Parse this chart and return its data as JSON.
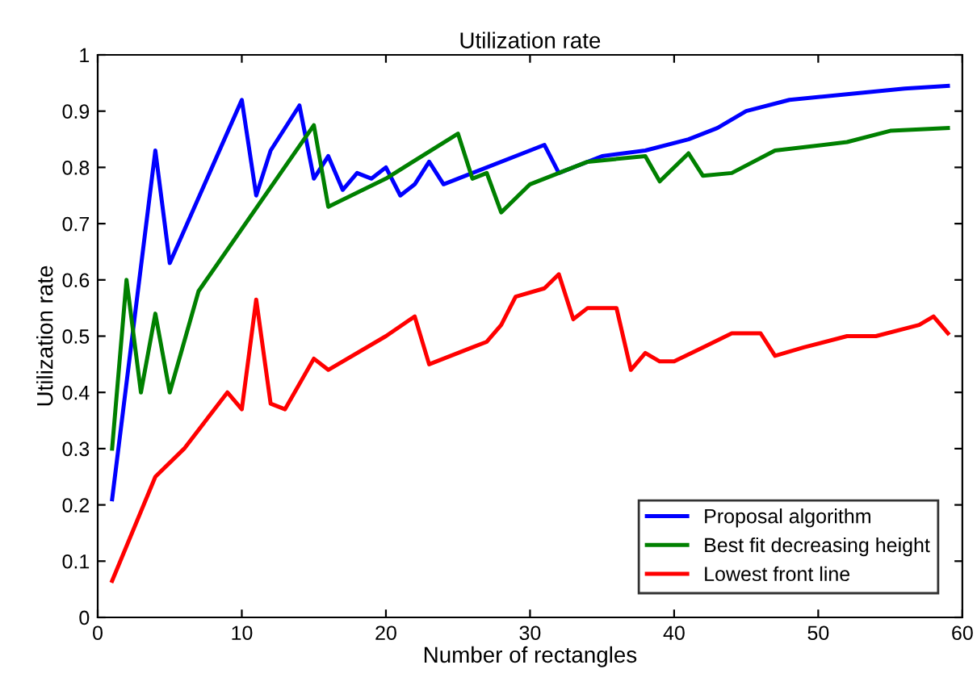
{
  "chart_data": {
    "type": "line",
    "title": "Utilization rate",
    "xlabel": "Number of rectangles",
    "ylabel": "Utilization rate",
    "xlim": [
      0,
      60
    ],
    "ylim": [
      0,
      1
    ],
    "xticks": [
      0,
      10,
      20,
      30,
      40,
      50,
      60
    ],
    "yticks": [
      0,
      0.1,
      0.2,
      0.3,
      0.4,
      0.5,
      0.6,
      0.7,
      0.8,
      0.9,
      1
    ],
    "grid": false,
    "legend": "bottom right",
    "marker": "none",
    "line_style": "solid",
    "series": [
      {
        "name": "Proposal algorithm",
        "color": "#0000ff",
        "x": [
          1,
          2.5,
          4,
          5,
          10,
          11,
          12,
          14,
          15,
          16,
          17,
          18,
          19,
          20,
          21,
          22,
          23,
          24,
          25,
          31,
          32,
          35,
          38,
          41,
          43,
          45,
          48,
          52,
          56,
          59
        ],
        "values": [
          0.21,
          0.52,
          0.83,
          0.63,
          0.92,
          0.75,
          0.83,
          0.91,
          0.78,
          0.82,
          0.76,
          0.79,
          0.78,
          0.8,
          0.75,
          0.77,
          0.81,
          0.77,
          0.78,
          0.84,
          0.79,
          0.82,
          0.83,
          0.85,
          0.87,
          0.9,
          0.92,
          0.93,
          0.94,
          0.945
        ]
      },
      {
        "name": "Best fit decreasing height",
        "color": "#008000",
        "x": [
          1,
          2,
          3,
          4,
          5,
          7,
          15,
          16,
          20,
          25,
          26,
          27,
          28,
          30,
          32,
          34,
          38,
          39,
          41,
          42,
          44,
          47,
          52,
          55,
          59
        ],
        "values": [
          0.3,
          0.6,
          0.4,
          0.54,
          0.4,
          0.58,
          0.875,
          0.73,
          0.78,
          0.86,
          0.78,
          0.79,
          0.72,
          0.77,
          0.79,
          0.81,
          0.82,
          0.775,
          0.825,
          0.785,
          0.79,
          0.83,
          0.845,
          0.865,
          0.87
        ]
      },
      {
        "name": "Lowest front line",
        "color": "#ff0000",
        "x": [
          1,
          4,
          6,
          9,
          10,
          11,
          12,
          13,
          15,
          16,
          20,
          22,
          23,
          26,
          27,
          28,
          29,
          31,
          32,
          33,
          34,
          36,
          37,
          38,
          39,
          40,
          42,
          44,
          46,
          47,
          49,
          52,
          54,
          57,
          58,
          59
        ],
        "values": [
          0.065,
          0.25,
          0.3,
          0.4,
          0.37,
          0.565,
          0.38,
          0.37,
          0.46,
          0.44,
          0.5,
          0.535,
          0.45,
          0.48,
          0.49,
          0.52,
          0.57,
          0.585,
          0.61,
          0.53,
          0.55,
          0.55,
          0.44,
          0.47,
          0.455,
          0.455,
          0.48,
          0.505,
          0.505,
          0.465,
          0.48,
          0.5,
          0.5,
          0.52,
          0.535,
          0.505
        ]
      }
    ]
  }
}
